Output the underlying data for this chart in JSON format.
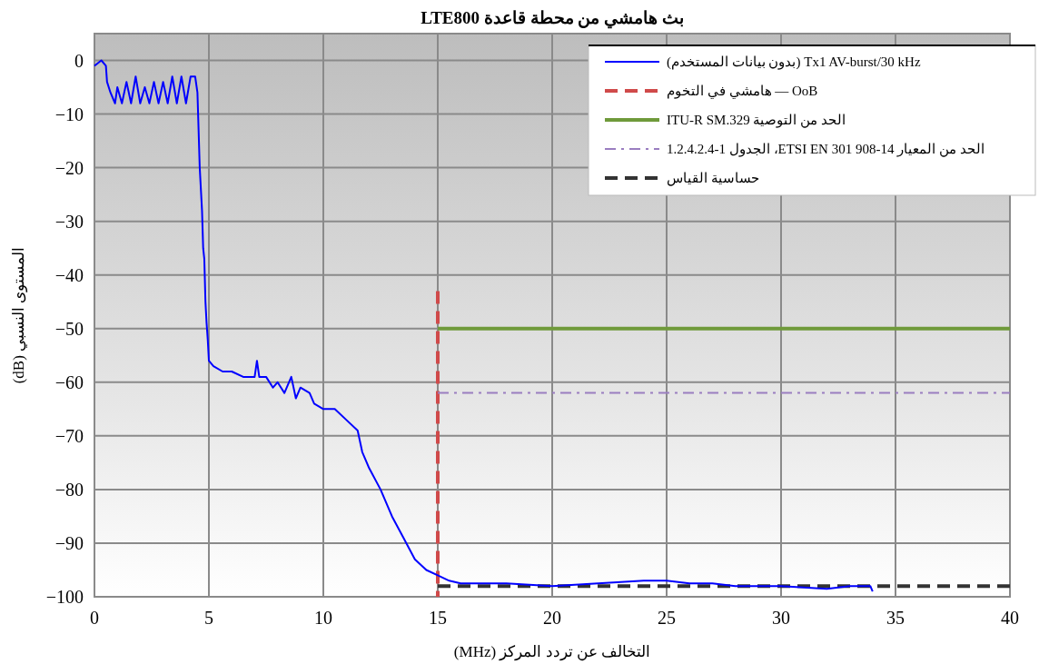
{
  "chart_data": {
    "type": "line",
    "title": "بث هامشي من محطة قاعدة LTE800",
    "xlabel": "التخالف عن تردد المركز (MHz)",
    "ylabel": "المستوى النسبي (dB)",
    "xlim": [
      0,
      40
    ],
    "ylim": [
      -100,
      5
    ],
    "xticks": [
      0,
      5,
      10,
      15,
      20,
      25,
      30,
      35,
      40
    ],
    "yticks": [
      {
        "value": 0,
        "label": "0"
      },
      {
        "value": -10,
        "label": "−10"
      },
      {
        "value": -20,
        "label": "−20"
      },
      {
        "value": -30,
        "label": "−30"
      },
      {
        "value": -40,
        "label": "−40"
      },
      {
        "value": -50,
        "label": "−50"
      },
      {
        "value": -60,
        "label": "−60"
      },
      {
        "value": -70,
        "label": "−70"
      },
      {
        "value": -80,
        "label": "−80"
      },
      {
        "value": -90,
        "label": "−90"
      },
      {
        "value": -100,
        "label": "−100"
      }
    ],
    "grid": true,
    "legend": "top right",
    "series": [
      {
        "name": "Tx1 AV-burst/30 kHz (بدون بيانات المستخدم)",
        "color": "#0000ff",
        "line_style": "solid",
        "x": [
          0,
          0.3,
          0.5,
          0.55,
          0.7,
          0.9,
          1.0,
          1.2,
          1.4,
          1.6,
          1.8,
          2.0,
          2.2,
          2.4,
          2.6,
          2.8,
          3.0,
          3.2,
          3.4,
          3.6,
          3.8,
          4.0,
          4.2,
          4.4,
          4.5,
          4.6,
          4.7,
          4.75,
          4.8,
          4.85,
          4.9,
          4.95,
          5.0,
          5.2,
          5.6,
          6.0,
          6.5,
          7.0,
          7.1,
          7.2,
          7.5,
          7.8,
          8.0,
          8.3,
          8.6,
          8.8,
          9.0,
          9.4,
          9.6,
          10.0,
          10.5,
          11.0,
          11.5,
          11.7,
          12.0,
          12.5,
          13.0,
          13.5,
          14.0,
          14.5,
          15.0,
          15.5,
          16.0,
          18.0,
          20.0,
          22.0,
          24.0,
          25.0,
          26.0,
          27.0,
          28.0,
          30.0,
          32.0,
          33.0,
          33.9,
          34.0
        ],
        "values": [
          -1,
          0,
          -1,
          -4,
          -6,
          -8,
          -5,
          -8,
          -4,
          -8,
          -3,
          -8,
          -5,
          -8,
          -4,
          -8,
          -4,
          -8,
          -3,
          -8,
          -3,
          -8,
          -3,
          -3,
          -6,
          -20,
          -28,
          -35,
          -37,
          -45,
          -49,
          -52,
          -56,
          -57,
          -58,
          -58,
          -59,
          -59,
          -56,
          -59,
          -59,
          -61,
          -60,
          -62,
          -59,
          -63,
          -61,
          -62,
          -64,
          -65,
          -65,
          -67,
          -69,
          -73,
          -76,
          -80,
          -85,
          -89,
          -93,
          -95,
          -96,
          -97,
          -97.5,
          -97.5,
          -98,
          -97.5,
          -97,
          -97,
          -97.5,
          -97.5,
          -98,
          -98,
          -98.5,
          -98,
          -98,
          -99
        ]
      },
      {
        "name": "OoB — هامشي في التخوم",
        "color": "#d04a4a",
        "line_style": "dashed",
        "x": [
          15,
          15
        ],
        "values": [
          -43,
          -100
        ]
      },
      {
        "name": "الحد من التوصية ITU-R SM.329",
        "color": "#6f9a3a",
        "line_style": "solid",
        "x": [
          15,
          40
        ],
        "values": [
          -50,
          -50
        ]
      },
      {
        "name": "الحد من المعيار ETSI EN 301 908-14، الجدول 1-1.2.4.2.4",
        "color": "#9a7ec0",
        "line_style": "dashdot",
        "x": [
          15,
          40
        ],
        "values": [
          -62,
          -62
        ]
      },
      {
        "name": "حساسية القياس",
        "color": "#333333",
        "line_style": "dashed",
        "x": [
          15,
          40
        ],
        "values": [
          -98,
          -98
        ]
      }
    ]
  }
}
